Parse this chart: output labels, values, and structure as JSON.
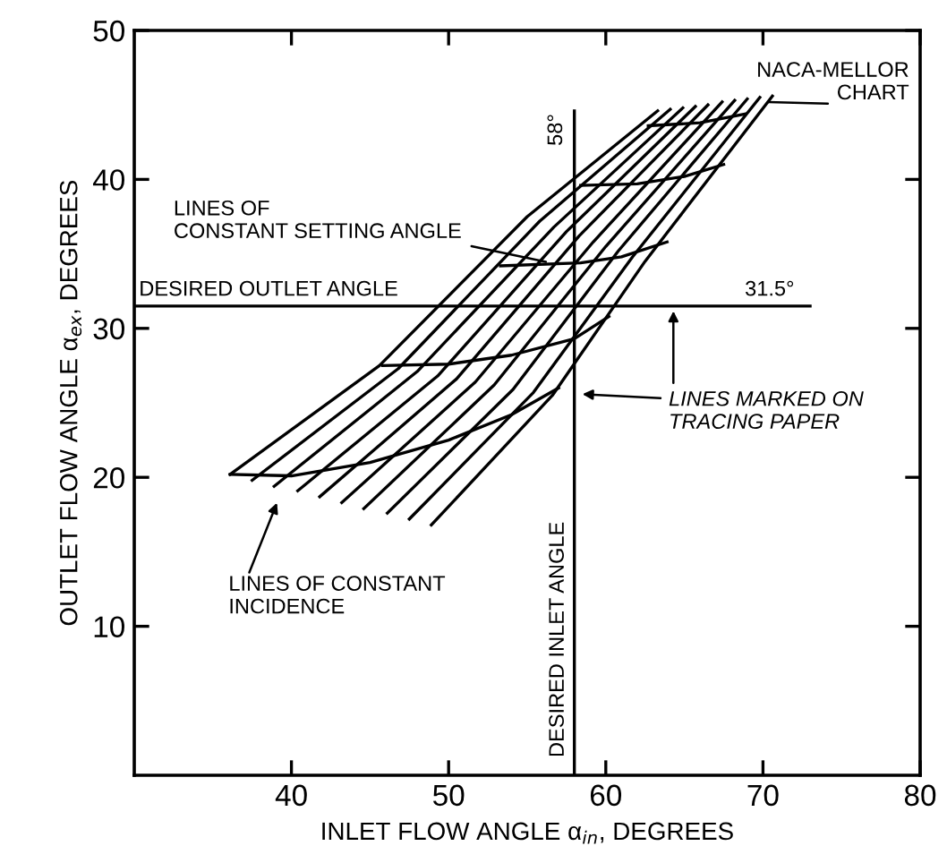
{
  "chart_data": {
    "type": "line",
    "xlabel": "INLET FLOW ANGLE α$_{in}$, DEGREES",
    "ylabel": "OUTLET FLOW ANGLE α$_{ex}$, DEGREES",
    "xlim": [
      30,
      80
    ],
    "xticks": [
      40,
      50,
      60,
      70,
      80
    ],
    "ylim": [
      0,
      50
    ],
    "yticks": [
      10,
      20,
      30,
      40,
      50
    ],
    "grid": false,
    "legend": false,
    "marker": "none",
    "line_style": "solid",
    "series": [
      {
        "color": "#000000",
        "x": [
          36.1,
          45.6,
          55.0,
          63.3
        ],
        "values": [
          20.2,
          27.5,
          37.5,
          44.6
        ]
      },
      {
        "color": "#000000",
        "x": [
          37.5,
          46.8,
          55.8,
          64.1
        ],
        "values": [
          19.8,
          27.3,
          37.2,
          44.7
        ]
      },
      {
        "color": "#000000",
        "x": [
          38.9,
          48.0,
          56.7,
          64.9
        ],
        "values": [
          19.4,
          27.1,
          36.8,
          44.8
        ]
      },
      {
        "color": "#000000",
        "x": [
          40.4,
          49.3,
          57.5,
          65.7
        ],
        "values": [
          19.1,
          26.8,
          36.5,
          44.9
        ]
      },
      {
        "color": "#000000",
        "x": [
          41.8,
          50.5,
          58.3,
          66.5
        ],
        "values": [
          18.7,
          26.6,
          36.2,
          45.0
        ]
      },
      {
        "color": "#000000",
        "x": [
          43.2,
          51.7,
          59.2,
          67.4
        ],
        "values": [
          18.3,
          26.4,
          35.8,
          45.2
        ]
      },
      {
        "color": "#000000",
        "x": [
          44.6,
          52.9,
          60.0,
          68.2
        ],
        "values": [
          17.9,
          26.2,
          35.5,
          45.3
        ]
      },
      {
        "color": "#000000",
        "x": [
          46.1,
          54.1,
          60.8,
          69.0
        ],
        "values": [
          17.6,
          25.9,
          35.2,
          45.4
        ]
      },
      {
        "color": "#000000",
        "x": [
          47.5,
          55.4,
          61.7,
          69.8
        ],
        "values": [
          17.2,
          25.7,
          34.8,
          45.5
        ]
      },
      {
        "color": "#000000",
        "x": [
          48.9,
          56.6,
          62.5,
          70.6
        ],
        "values": [
          16.8,
          25.5,
          34.5,
          45.6
        ]
      },
      {
        "color": "#000000",
        "x": [
          36.1,
          40,
          45,
          50,
          54,
          57.0
        ],
        "values": [
          20.2,
          20.1,
          21.0,
          22.5,
          24.2,
          26.0
        ]
      },
      {
        "color": "#000000",
        "x": [
          45.8,
          50,
          54,
          58,
          60.2
        ],
        "values": [
          27.5,
          27.6,
          28.2,
          29.3,
          30.8
        ]
      },
      {
        "color": "#000000",
        "x": [
          53.3,
          58.4,
          61,
          63.9
        ],
        "values": [
          34.2,
          34.4,
          34.8,
          35.8
        ]
      },
      {
        "color": "#000000",
        "x": [
          58.4,
          62,
          65,
          67.5
        ],
        "values": [
          39.6,
          39.7,
          40.2,
          41.0
        ]
      },
      {
        "color": "#000000",
        "x": [
          62.7,
          66,
          68.9
        ],
        "values": [
          43.6,
          43.8,
          44.4
        ]
      }
    ],
    "ref_lines": [
      {
        "axis": "x",
        "value": 58,
        "label": "DESIRED INLET ANGLE",
        "color": "#000000"
      },
      {
        "axis": "y",
        "value": 31.5,
        "label": "DESIRED OUTLET ANGLE",
        "color": "#000000"
      }
    ],
    "annotations": [
      {
        "text": "58°",
        "x": 58,
        "y": 44.6
      },
      {
        "text": "31.5°",
        "x": 73,
        "y": 31.5
      },
      {
        "text": "LINES OF\nCONSTANT SETTING ANGLE",
        "x": 56.5,
        "y": 34.4
      },
      {
        "text": "NACA-MELLOR\nCHART",
        "x": 70.0,
        "y": 45.2
      },
      "LINES MARKED ON\nTRACING PAPER",
      "LINES OF CONSTANT\nINCIDENCE"
    ]
  }
}
